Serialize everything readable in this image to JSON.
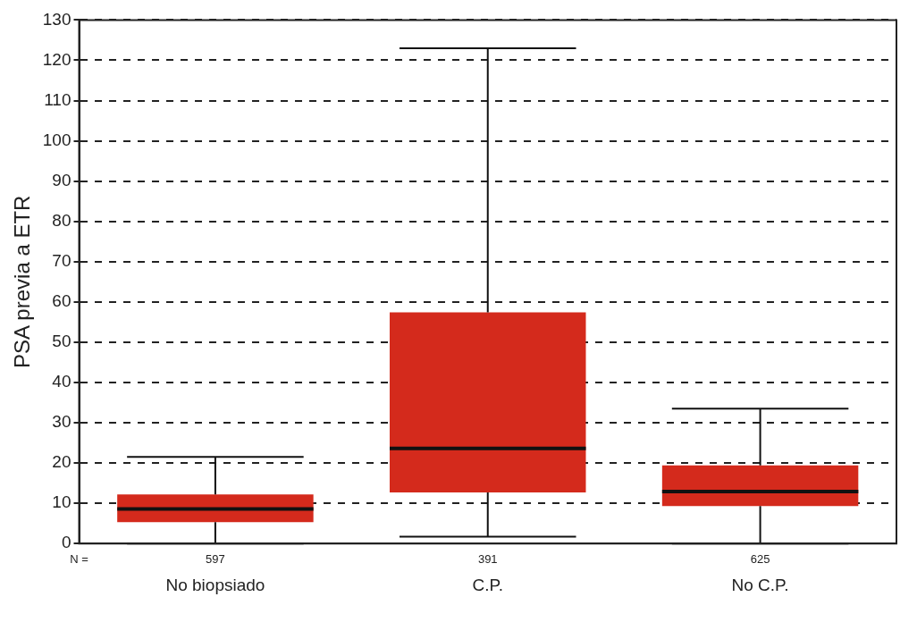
{
  "chart_data": {
    "type": "box",
    "ylabel": "PSA previa a ETR",
    "categories": [
      "No biopsiado",
      "C.P.",
      "No C.P."
    ],
    "boxes": [
      {
        "low": 0,
        "q1": 5.3,
        "median": 8.6,
        "q3": 12.2,
        "high": 21.5
      },
      {
        "low": 1.7,
        "q1": 12.7,
        "median": 23.6,
        "q3": 57.4,
        "high": 123
      },
      {
        "low": 0,
        "q1": 9.3,
        "median": 12.9,
        "q3": 19.4,
        "high": 33.5
      }
    ],
    "color": "#d42a1c",
    "ylim": [
      0,
      130
    ],
    "yticks": [
      0,
      10,
      20,
      30,
      40,
      50,
      60,
      70,
      80,
      90,
      100,
      110,
      120,
      130
    ],
    "grid": "y",
    "annotations": [
      "N =",
      "597",
      "391",
      "625"
    ]
  }
}
